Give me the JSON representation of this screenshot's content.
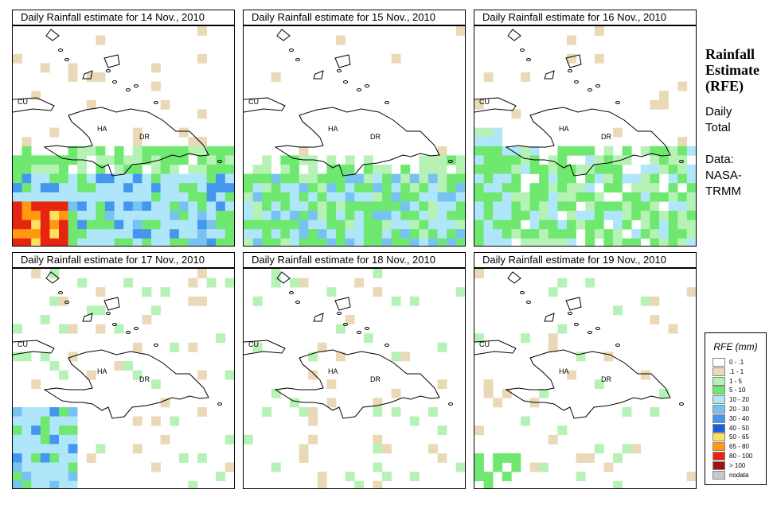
{
  "panels": [
    {
      "title": "Daily Rainfall estimate for  14 Nov., 2010"
    },
    {
      "title": "Daily Rainfall estimate for  15 Nov., 2010"
    },
    {
      "title": "Daily Rainfall estimate for  16 Nov., 2010"
    },
    {
      "title": "Daily Rainfall estimate for  17 Nov., 2010"
    },
    {
      "title": "Daily Rainfall estimate for  18 Nov., 2010"
    },
    {
      "title": "Daily Rainfall estimate for  19 Nov., 2010"
    }
  ],
  "map_labels": {
    "cu": "CU",
    "ha": "HA",
    "dr": "DR"
  },
  "sidebar": {
    "title_line1": "Rainfall",
    "title_line2": "Estimate",
    "title_line3": "(RFE)",
    "daily": "Daily",
    "total": "Total",
    "data_label": "Data:",
    "source1": "NASA-",
    "source2": "TRMM"
  },
  "legend": {
    "title": "RFE (mm)",
    "items": [
      {
        "label": "0 - .1",
        "color": "#ffffff"
      },
      {
        "label": ".1 - 1",
        "color": "#ead9b6"
      },
      {
        "label": "1 - 5",
        "color": "#b6f2b6"
      },
      {
        "label": "5 - 10",
        "color": "#6ee86e"
      },
      {
        "label": "10 - 20",
        "color": "#b0e6fa"
      },
      {
        "label": "20 - 30",
        "color": "#78c2f2"
      },
      {
        "label": "30 - 40",
        "color": "#4496ee"
      },
      {
        "label": "40 - 50",
        "color": "#1860e0"
      },
      {
        "label": "50 - 65",
        "color": "#ffe060"
      },
      {
        "label": "65 - 80",
        "color": "#ff9a10"
      },
      {
        "label": "80 - 100",
        "color": "#e62410"
      },
      {
        "label": "> 100",
        "color": "#a01010"
      },
      {
        "label": "nodata",
        "color": "#c8c8c8"
      }
    ]
  }
}
